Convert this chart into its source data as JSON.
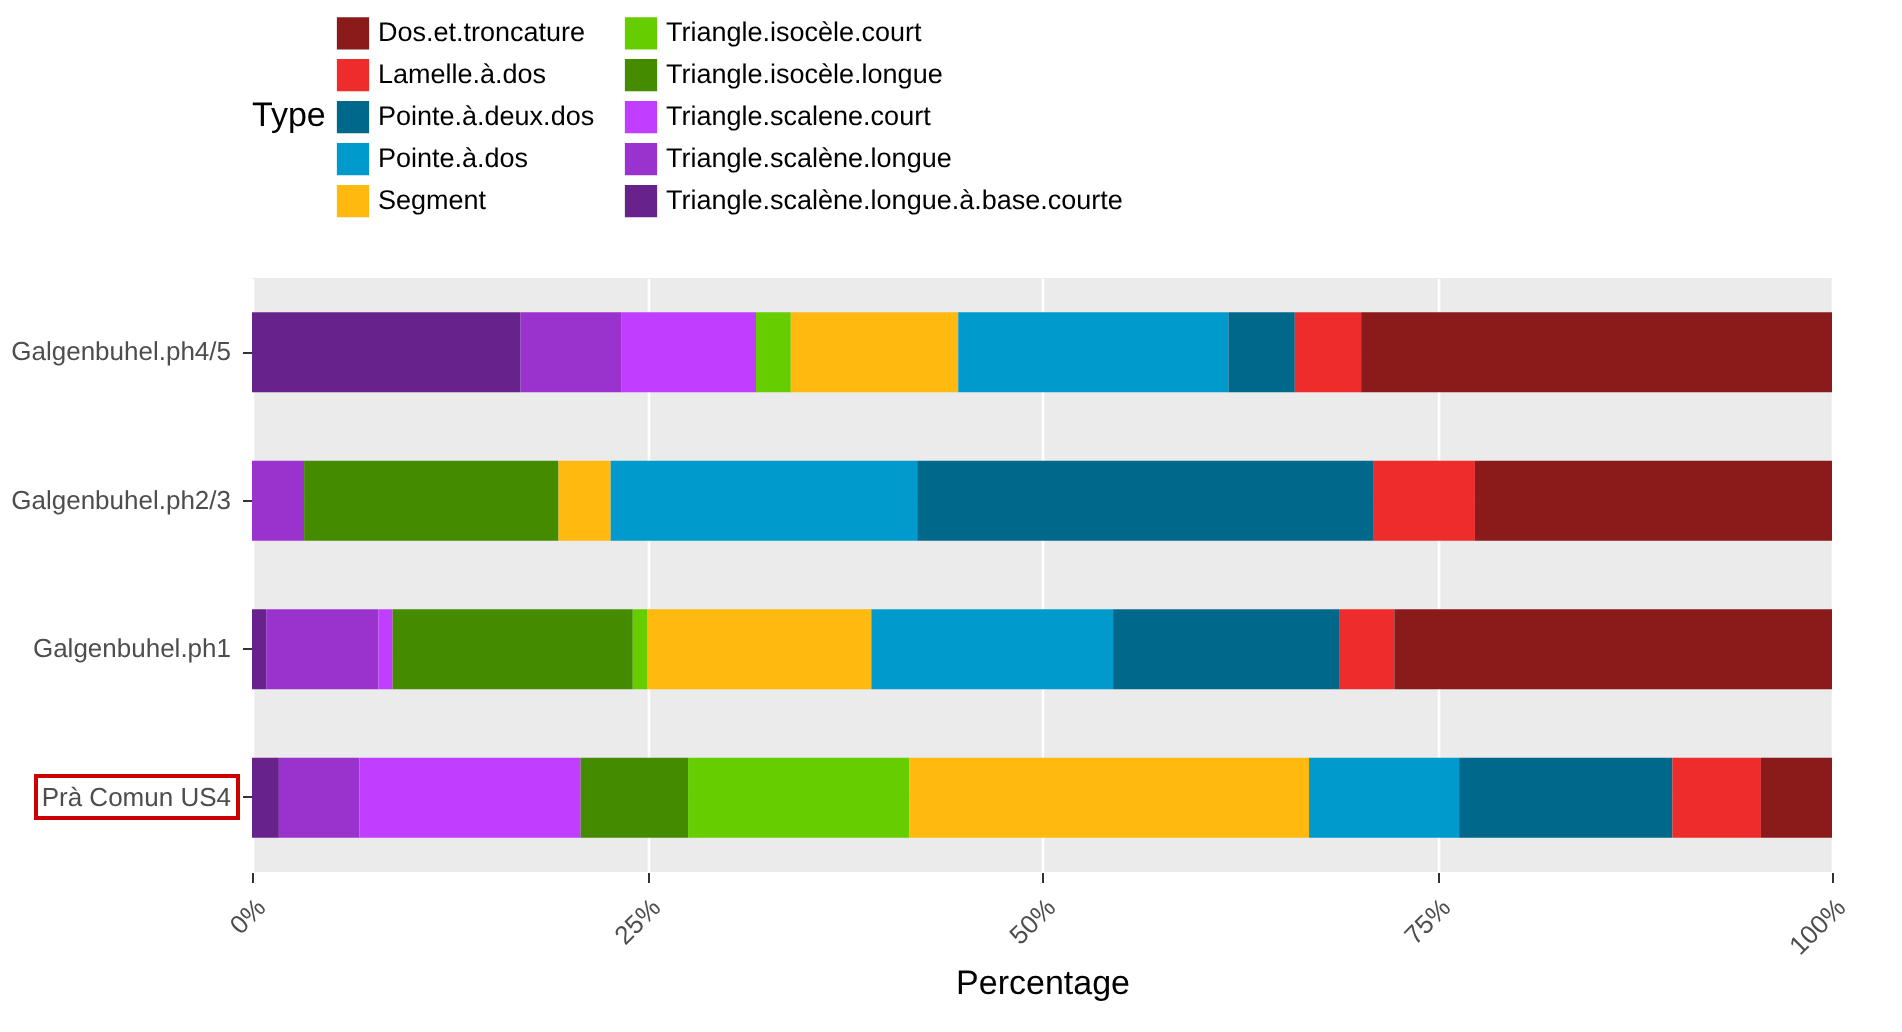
{
  "chart_data": {
    "type": "bar",
    "orientation": "horizontal",
    "stacked": true,
    "categories": [
      "Galgenbuhel.ph4/5",
      "Galgenbuhel.ph2/3",
      "Galgenbuhel.ph1",
      "Prà Comun US4"
    ],
    "series": [
      {
        "name": "Triangle.scalène.longue.à.base.courte",
        "color": "#68228b",
        "values": [
          17.0,
          0,
          0.9,
          1.7
        ]
      },
      {
        "name": "Triangle.scalène.longue",
        "color": "#9a32cd",
        "values": [
          6.4,
          3.3,
          7.1,
          5.1
        ]
      },
      {
        "name": "Triangle.scalene.court",
        "color": "#bf3eff",
        "values": [
          8.5,
          0,
          0.9,
          14.0
        ]
      },
      {
        "name": "Triangle.isocèle.longue",
        "color": "#458b00",
        "values": [
          0,
          16.1,
          15.2,
          6.8
        ]
      },
      {
        "name": "Triangle.isocèle.court",
        "color": "#66cd00",
        "values": [
          2.2,
          0,
          0.9,
          14.0
        ]
      },
      {
        "name": "Segment",
        "color": "#ffb90f",
        "values": [
          10.6,
          3.3,
          14.2,
          25.3
        ]
      },
      {
        "name": "Pointe.à.dos",
        "color": "#009acd",
        "values": [
          17.1,
          19.4,
          15.3,
          9.5
        ]
      },
      {
        "name": "Pointe.à.deux.dos",
        "color": "#00688b",
        "values": [
          4.2,
          28.9,
          14.3,
          13.5
        ]
      },
      {
        "name": "Lamelle.à.dos",
        "color": "#ee2c2c",
        "values": [
          4.2,
          6.4,
          3.5,
          5.6
        ]
      },
      {
        "name": "Dos.et.troncature",
        "color": "#8b1a1a",
        "values": [
          29.8,
          22.6,
          27.7,
          4.5
        ]
      }
    ],
    "xlabel": "Percentage",
    "legend_title": "Type",
    "xlim": [
      0,
      100
    ],
    "xticks": [
      {
        "value": 0,
        "label": "0%"
      },
      {
        "value": 25,
        "label": "25%"
      },
      {
        "value": 50,
        "label": "50%"
      },
      {
        "value": 75,
        "label": "75%"
      },
      {
        "value": 100,
        "label": "100%"
      }
    ],
    "grid": true,
    "legend": "top"
  }
}
